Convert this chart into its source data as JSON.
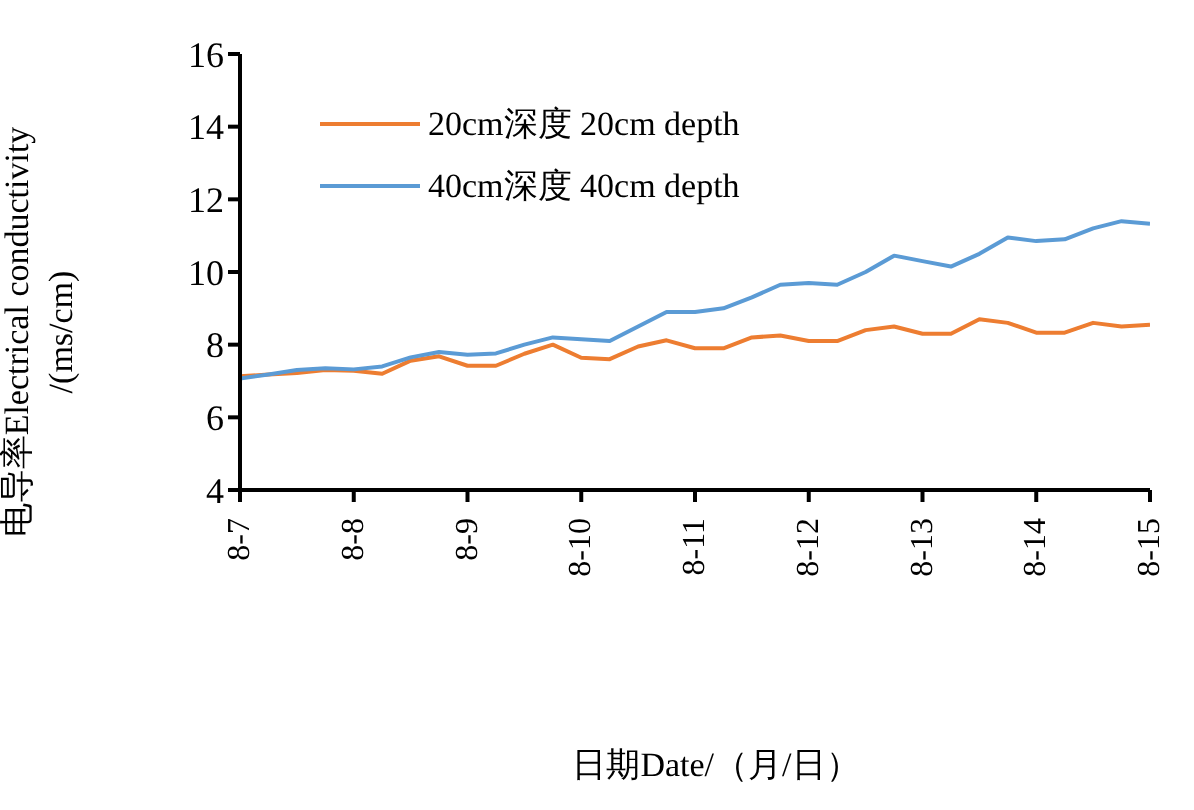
{
  "chart_data": {
    "type": "line",
    "xlabel": "日期Date/（月/日）",
    "ylabel": "电导率Electrical conductivity\n/(ms/cm)",
    "categories": [
      "8-7",
      null,
      null,
      null,
      "8-8",
      null,
      null,
      null,
      "8-9",
      null,
      null,
      null,
      "8-10",
      null,
      null,
      null,
      "8-11",
      null,
      null,
      null,
      "8-12",
      null,
      null,
      null,
      "8-13",
      null,
      null,
      null,
      "8-14",
      null,
      null,
      null,
      "8-15"
    ],
    "series": [
      {
        "name": "20cm深度 20cm depth",
        "color": "#ed7d31",
        "values": [
          7.13,
          7.18,
          7.22,
          7.3,
          7.28,
          7.2,
          7.56,
          7.68,
          7.42,
          7.42,
          7.75,
          8.0,
          7.64,
          7.6,
          7.95,
          8.12,
          7.9,
          7.9,
          8.2,
          8.25,
          8.1,
          8.1,
          8.4,
          8.5,
          8.3,
          8.3,
          8.7,
          8.6,
          8.33,
          8.33,
          8.6,
          8.5,
          8.55
        ]
      },
      {
        "name": "40cm深度 40cm depth",
        "color": "#5b9bd5",
        "values": [
          7.07,
          7.18,
          7.3,
          7.35,
          7.32,
          7.4,
          7.65,
          7.8,
          7.72,
          7.76,
          8.0,
          8.2,
          8.15,
          8.1,
          8.5,
          8.9,
          8.9,
          9.0,
          9.3,
          9.65,
          9.7,
          9.65,
          10.0,
          10.45,
          10.3,
          10.15,
          10.5,
          10.95,
          10.85,
          10.9,
          11.2,
          11.4,
          11.33
        ]
      }
    ],
    "ylim": [
      4,
      16
    ],
    "yticks": [
      4,
      6,
      8,
      10,
      12,
      14,
      16
    ],
    "legend": "top left",
    "marker": "none",
    "line_style": "solid"
  }
}
